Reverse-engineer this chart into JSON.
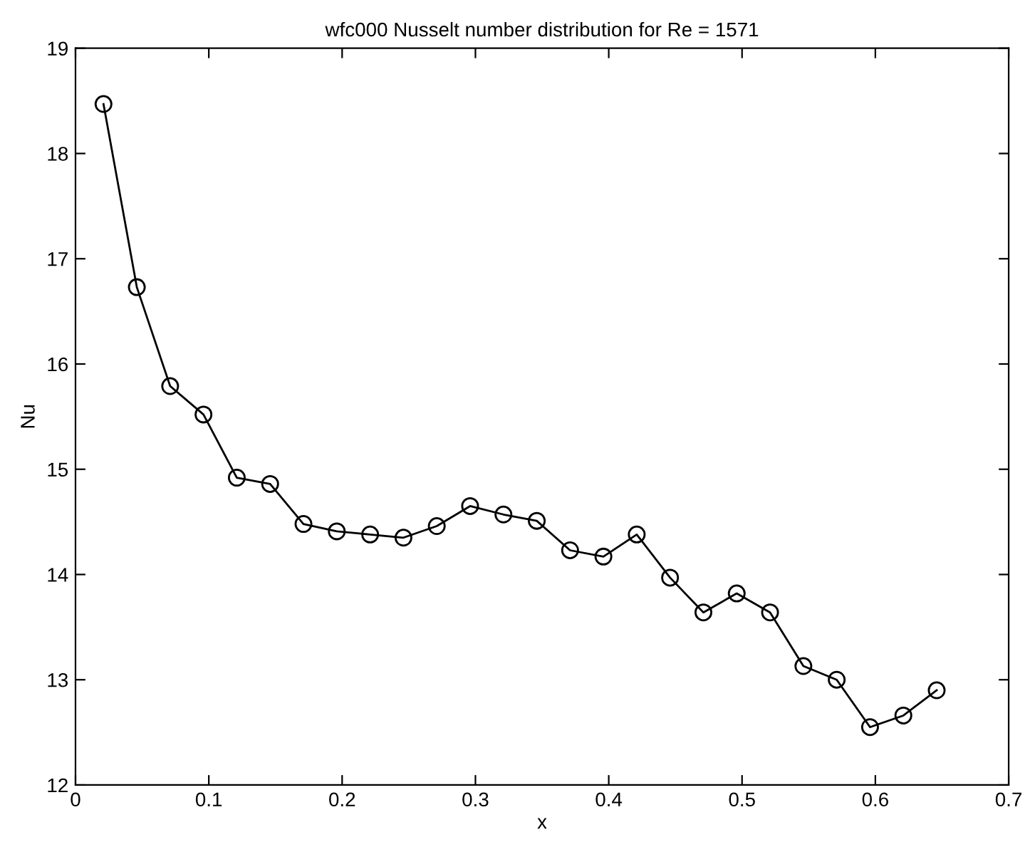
{
  "chart_data": {
    "type": "line",
    "title": "wfc000 Nusselt number distribution for Re = 1571",
    "xlabel": "x",
    "ylabel": "Nu",
    "x": [
      0.021,
      0.046,
      0.071,
      0.096,
      0.121,
      0.146,
      0.171,
      0.196,
      0.221,
      0.246,
      0.271,
      0.296,
      0.321,
      0.346,
      0.371,
      0.396,
      0.421,
      0.446,
      0.471,
      0.496,
      0.521,
      0.546,
      0.571,
      0.596,
      0.621,
      0.646
    ],
    "series": [
      {
        "color": "#000000",
        "values": [
          18.47,
          16.73,
          15.79,
          15.52,
          14.92,
          14.86,
          14.48,
          14.41,
          14.38,
          14.35,
          14.46,
          14.65,
          14.57,
          14.51,
          14.23,
          14.17,
          14.38,
          13.97,
          13.64,
          13.82,
          13.64,
          13.13,
          13.0,
          12.55,
          12.66,
          12.9
        ]
      }
    ],
    "xlim": [
      0,
      0.7
    ],
    "ylim": [
      12,
      19
    ],
    "xticks": [
      0,
      0.1,
      0.2,
      0.3,
      0.4,
      0.5,
      0.6,
      0.7
    ],
    "yticks": [
      12,
      13,
      14,
      15,
      16,
      17,
      18,
      19
    ],
    "marker": "circle",
    "line_style": "solid",
    "grid": false,
    "legend": false
  }
}
